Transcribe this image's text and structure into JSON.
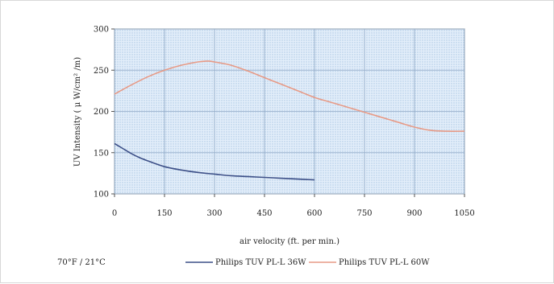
{
  "chart_data": {
    "type": "line",
    "title": "",
    "xlabel": "air velocity (ft. per min.)",
    "ylabel": "UV Intensity ( μ W/cm² /m)",
    "xlim": [
      0,
      1050
    ],
    "ylim": [
      100,
      300
    ],
    "xticks": [
      0,
      150,
      300,
      450,
      600,
      750,
      900,
      1050
    ],
    "yticks": [
      100,
      150,
      200,
      250,
      300
    ],
    "grid": true,
    "legend_position": "bottom",
    "note": "70°F / 21°C",
    "series": [
      {
        "name": "Philips TUV PL-L 36W",
        "color": "#3c4f87",
        "x": [
          0,
          25,
          50,
          75,
          100,
          150,
          200,
          250,
          300,
          350,
          400,
          450,
          500,
          550,
          600
        ],
        "y": [
          161,
          155,
          149,
          144,
          140,
          133,
          129,
          126,
          124,
          122,
          121,
          120,
          119,
          118,
          117
        ]
      },
      {
        "name": "Philips TUV PL-L 60W",
        "color": "#e79a86",
        "x": [
          0,
          50,
          100,
          150,
          200,
          250,
          280,
          300,
          350,
          400,
          450,
          500,
          550,
          600,
          650,
          700,
          750,
          800,
          850,
          900,
          950,
          1000,
          1050
        ],
        "y": [
          221,
          232,
          242,
          250,
          256,
          260,
          261,
          260,
          256,
          249,
          241,
          233,
          225,
          217,
          211,
          205,
          199,
          193,
          187,
          181,
          177,
          176,
          176
        ]
      }
    ]
  }
}
